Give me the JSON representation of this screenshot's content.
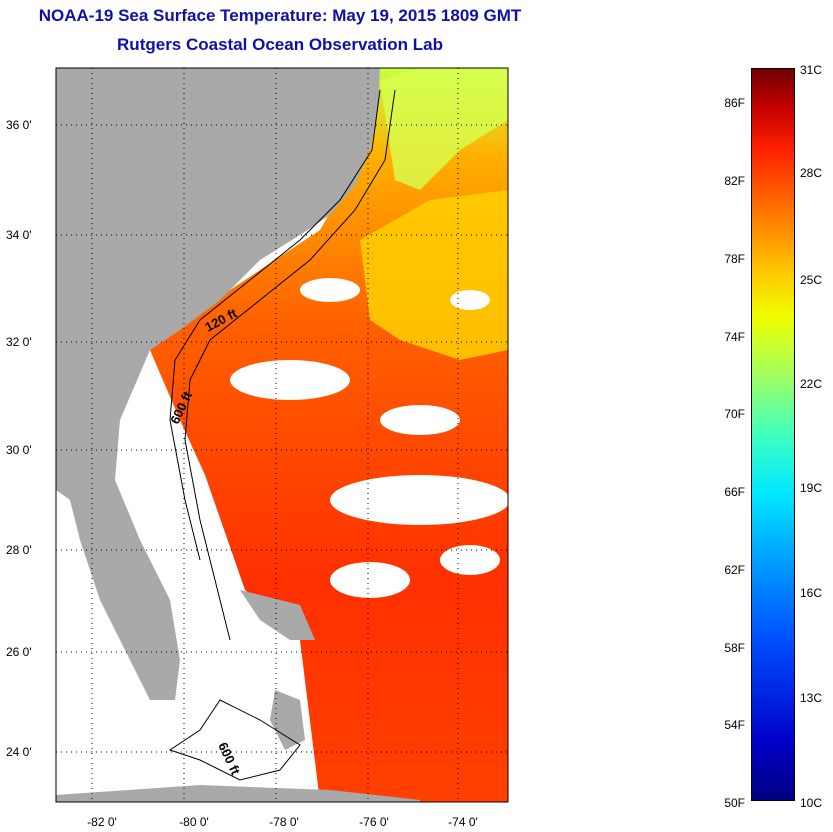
{
  "title_line1": "NOAA-19 Sea Surface Temperature:  May 19, 2015 1809 GMT",
  "title_line2": "Rutgers Coastal Ocean Observation Lab",
  "map": {
    "longitude_labels": [
      "-82 0'",
      "-80 0'",
      "-78 0'",
      "-76 0'",
      "-74 0'"
    ],
    "latitude_labels": [
      "36 0'",
      "34 0'",
      "32 0'",
      "30 0'",
      "28 0'",
      "26 0'",
      "24 0'"
    ],
    "contour_labels": [
      "120 ft",
      "600 ft",
      "600 ft"
    ]
  },
  "colorbar": {
    "fahrenheit_labels": [
      "86F",
      "82F",
      "78F",
      "74F",
      "70F",
      "66F",
      "62F",
      "58F",
      "54F",
      "50F"
    ],
    "celsius_labels": [
      "31C",
      "28C",
      "25C",
      "22C",
      "19C",
      "16C",
      "13C",
      "10C"
    ],
    "colors": {
      "min": "#000080",
      "mid": "#f0ff00",
      "max": "#700000"
    }
  },
  "colors": {
    "title": "#1010a8",
    "land": "#a9a9a9",
    "sea_warm": "#ff5a00",
    "cloud": "#ffffff"
  }
}
